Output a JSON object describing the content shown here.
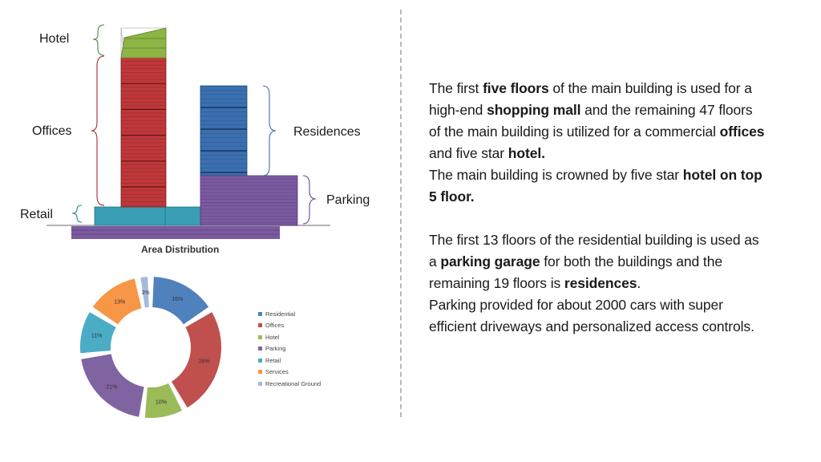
{
  "diagram": {
    "labels": {
      "hotel": "Hotel",
      "offices": "Offices",
      "retail": "Retail",
      "residences": "Residences",
      "parking": "Parking"
    }
  },
  "description": {
    "paragraph1": [
      {
        "t": "The first ",
        "b": false
      },
      {
        "t": "five floors",
        "b": true
      },
      {
        "t": " of the main building is used for a high-end ",
        "b": false
      },
      {
        "t": "shopping mall",
        "b": true
      },
      {
        "t": " and the remaining 47 floors of the main building is utilized for a commercial ",
        "b": false
      },
      {
        "t": "offices",
        "b": true
      },
      {
        "t": " and five star ",
        "b": false
      },
      {
        "t": "hotel.",
        "b": true
      }
    ],
    "paragraph2": [
      {
        "t": "The main building is crowned by five star ",
        "b": false
      },
      {
        "t": "hotel on top 5 floor.",
        "b": true
      }
    ],
    "paragraph3": [
      {
        "t": "The first 13 floors of the residential building is used as a ",
        "b": false
      },
      {
        "t": "parking garage",
        "b": true
      },
      {
        "t": " for both the buildings and the remaining 19 floors is ",
        "b": false
      },
      {
        "t": "residences",
        "b": true
      },
      {
        "t": ".",
        "b": false
      }
    ],
    "paragraph4": [
      {
        "t": "Parking provided for about 2000 cars with super efficient driveways and personalized access controls.",
        "b": false
      }
    ]
  },
  "chart_data": {
    "type": "pie",
    "title": "Area Distribution",
    "donut": true,
    "legend_position": "right",
    "categories": [
      "Residential",
      "Offices",
      "Hotel",
      "Parking",
      "Retail",
      "Services",
      "Recreational Ground"
    ],
    "values": [
      16,
      26,
      10,
      21,
      11,
      13,
      3
    ],
    "labels": [
      "16%",
      "26%",
      "10%",
      "21%",
      "11%",
      "13%",
      "3%"
    ],
    "colors": [
      "#4f81bd",
      "#c0504d",
      "#9bbb59",
      "#8064a2",
      "#4bacc6",
      "#f79646",
      "#a5b9dc"
    ]
  }
}
